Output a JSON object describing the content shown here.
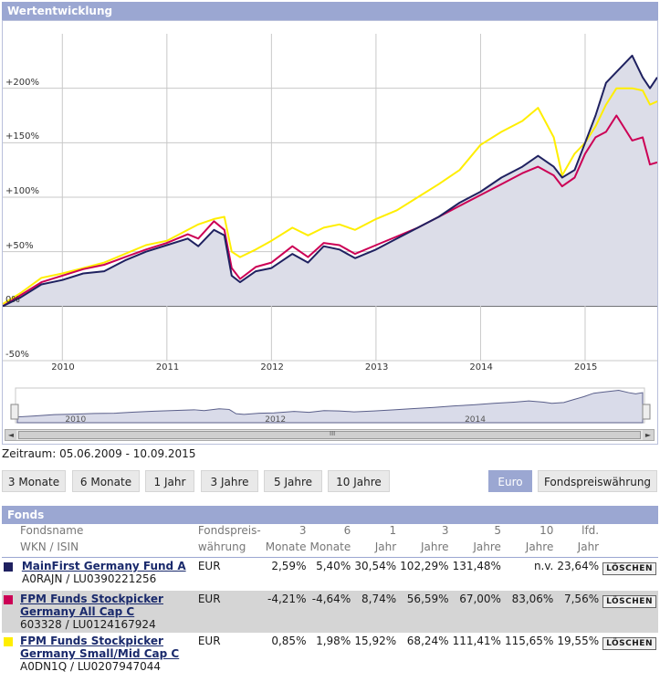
{
  "panel_title": "Wertentwicklung",
  "y_ticks": [
    "+200%",
    "+150%",
    "+100%",
    "+50%",
    "0%",
    "-50%"
  ],
  "x_ticks": [
    "2010",
    "2011",
    "2012",
    "2013",
    "2014",
    "2015"
  ],
  "nav_ticks": [
    "2010",
    "2012",
    "2014"
  ],
  "scroll_handle_glyph": "III",
  "scroll_left": "◄",
  "scroll_right": "►",
  "date_range": "Zeitraum: 05.06.2009 - 10.09.2015",
  "period_buttons": [
    "3 Monate",
    "6 Monate",
    "1 Jahr",
    "3 Jahre",
    "5 Jahre",
    "10 Jahre"
  ],
  "currency_buttons": [
    "Euro",
    "Fondspreiswährung"
  ],
  "funds_title": "Fonds",
  "headers": {
    "name1": "Fondsname",
    "name2": "WKN / ISIN",
    "cur1": "Fondspreis-",
    "cur2": "währung",
    "m3a": "3",
    "m3b": "Monate",
    "m6a": "6",
    "m6b": "Monate",
    "y1a": "1",
    "y1b": "Jahr",
    "y3a": "3",
    "y3b": "Jahre",
    "y5a": "5",
    "y5b": "Jahre",
    "y10a": "10",
    "y10b": "Jahre",
    "lfda": "lfd.",
    "lfdb": "Jahr"
  },
  "delete_label": "LÖSCHEN",
  "funds": [
    {
      "name": "MainFirst Germany Fund A",
      "id": "A0RAJN / LU0390221256",
      "currency": "EUR",
      "m3": "2,59%",
      "m6": "5,40%",
      "y1": "30,54%",
      "y3": "102,29%",
      "y5": "131,48%",
      "y10": "n.v.",
      "lfd": "23,64%",
      "color": "#1f2160"
    },
    {
      "name": "FPM Funds Stockpicker Germany All Cap C",
      "id": "603328 / LU0124167924",
      "currency": "EUR",
      "m3": "-4,21%",
      "m6": "-4,64%",
      "y1": "8,74%",
      "y3": "56,59%",
      "y5": "67,00%",
      "y10": "83,06%",
      "lfd": "7,56%",
      "color": "#cc0055"
    },
    {
      "name": "FPM Funds Stockpicker Germany Small/Mid Cap C",
      "id": "A0DN1Q / LU0207947044",
      "currency": "EUR",
      "m3": "0,85%",
      "m6": "1,98%",
      "y1": "15,92%",
      "y3": "68,24%",
      "y5": "111,41%",
      "y10": "115,65%",
      "lfd": "19,55%",
      "color": "#ffee00"
    }
  ],
  "chart_data": {
    "type": "line",
    "y_unit": "%",
    "ylim": [
      -50,
      250
    ],
    "xlim": [
      2009.43,
      2015.69
    ],
    "grid": true,
    "series": [
      {
        "name": "MainFirst Germany Fund A",
        "color": "#1f2160",
        "x": [
          2009.43,
          2009.6,
          2009.8,
          2010.0,
          2010.2,
          2010.4,
          2010.6,
          2010.8,
          2011.0,
          2011.2,
          2011.3,
          2011.45,
          2011.55,
          2011.62,
          2011.7,
          2011.85,
          2012.0,
          2012.2,
          2012.35,
          2012.5,
          2012.65,
          2012.8,
          2013.0,
          2013.2,
          2013.4,
          2013.6,
          2013.8,
          2014.0,
          2014.2,
          2014.4,
          2014.55,
          2014.7,
          2014.78,
          2014.9,
          2015.0,
          2015.1,
          2015.2,
          2015.3,
          2015.45,
          2015.55,
          2015.62,
          2015.69
        ],
        "y": [
          0,
          8,
          20,
          24,
          30,
          32,
          42,
          50,
          56,
          62,
          55,
          70,
          65,
          28,
          22,
          32,
          35,
          48,
          40,
          55,
          52,
          44,
          52,
          62,
          72,
          82,
          95,
          105,
          118,
          128,
          138,
          128,
          118,
          125,
          150,
          175,
          205,
          215,
          230,
          210,
          200,
          210
        ]
      },
      {
        "name": "FPM Funds Stockpicker Germany All Cap C",
        "color": "#cc0055",
        "x": [
          2009.43,
          2009.6,
          2009.8,
          2010.0,
          2010.2,
          2010.4,
          2010.6,
          2010.8,
          2011.0,
          2011.2,
          2011.3,
          2011.45,
          2011.55,
          2011.62,
          2011.7,
          2011.85,
          2012.0,
          2012.2,
          2012.35,
          2012.5,
          2012.65,
          2012.8,
          2013.0,
          2013.2,
          2013.4,
          2013.6,
          2013.8,
          2014.0,
          2014.2,
          2014.4,
          2014.55,
          2014.7,
          2014.78,
          2014.9,
          2015.0,
          2015.1,
          2015.2,
          2015.3,
          2015.45,
          2015.55,
          2015.62,
          2015.69
        ],
        "y": [
          0,
          10,
          22,
          28,
          34,
          38,
          45,
          52,
          58,
          66,
          62,
          78,
          70,
          35,
          25,
          36,
          40,
          55,
          45,
          58,
          56,
          48,
          56,
          64,
          72,
          82,
          92,
          102,
          112,
          122,
          128,
          120,
          110,
          118,
          140,
          155,
          160,
          175,
          152,
          155,
          130,
          132
        ]
      },
      {
        "name": "FPM Funds Stockpicker Germany Small/Mid Cap C",
        "color": "#ffee00",
        "x": [
          2009.43,
          2009.6,
          2009.8,
          2010.0,
          2010.2,
          2010.4,
          2010.6,
          2010.8,
          2011.0,
          2011.2,
          2011.3,
          2011.45,
          2011.55,
          2011.62,
          2011.7,
          2011.85,
          2012.0,
          2012.2,
          2012.35,
          2012.5,
          2012.65,
          2012.8,
          2013.0,
          2013.2,
          2013.4,
          2013.6,
          2013.8,
          2014.0,
          2014.2,
          2014.4,
          2014.55,
          2014.7,
          2014.78,
          2014.9,
          2015.0,
          2015.1,
          2015.2,
          2015.3,
          2015.45,
          2015.55,
          2015.62,
          2015.69
        ],
        "y": [
          2,
          12,
          26,
          30,
          35,
          40,
          48,
          56,
          60,
          70,
          75,
          80,
          82,
          50,
          45,
          52,
          60,
          72,
          65,
          72,
          75,
          70,
          80,
          88,
          100,
          112,
          125,
          148,
          160,
          170,
          182,
          155,
          120,
          140,
          150,
          165,
          185,
          200,
          200,
          198,
          185,
          188
        ]
      }
    ]
  }
}
